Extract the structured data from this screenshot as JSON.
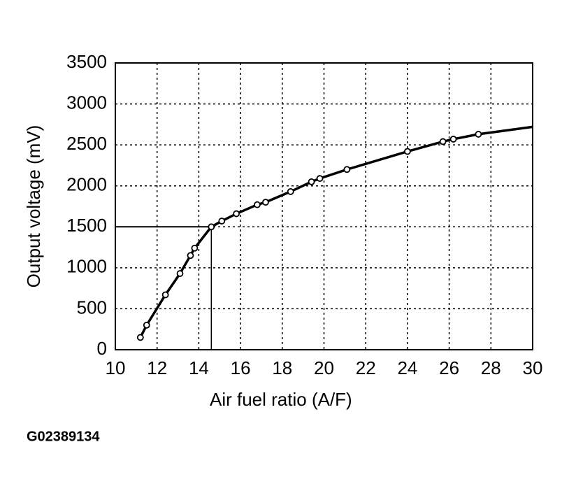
{
  "chart_data": {
    "type": "line",
    "xlabel": "Air fuel ratio (A/F)",
    "ylabel": "Output voltage (mV)",
    "caption": "G02389134",
    "x": [
      11.2,
      11.5,
      12.4,
      13.1,
      13.6,
      13.8,
      14.6,
      15.1,
      15.8,
      16.8,
      17.2,
      18.4,
      19.4,
      19.8,
      21.1,
      24.0,
      25.7,
      26.2,
      27.4
    ],
    "series": [
      {
        "color": "#000000",
        "values": [
          150,
          300,
          670,
          930,
          1150,
          1240,
          1500,
          1570,
          1660,
          1770,
          1800,
          1930,
          2050,
          2090,
          2200,
          2420,
          2540,
          2570,
          2630
        ]
      }
    ],
    "curve_end": {
      "x": 30,
      "y": 2720
    },
    "reference": {
      "x": 14.6,
      "y": 1500
    },
    "xlim": [
      10,
      30
    ],
    "xticks": [
      10,
      12,
      14,
      16,
      18,
      20,
      22,
      24,
      26,
      28,
      30
    ],
    "ylim": [
      0,
      3500
    ],
    "yticks": [
      0,
      500,
      1000,
      1500,
      2000,
      2500,
      3000,
      3500
    ],
    "grid": true
  }
}
